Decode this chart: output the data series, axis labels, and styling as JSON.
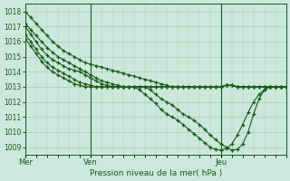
{
  "title": "Pression niveau de la mer( hPa )",
  "xlabel_ticks": [
    "Mer",
    "Ven",
    "Jeu"
  ],
  "xlabel_tick_positions": [
    0,
    12,
    36
  ],
  "ylim": [
    1008.5,
    1018.5
  ],
  "yticks": [
    1009,
    1010,
    1011,
    1012,
    1013,
    1014,
    1015,
    1016,
    1017,
    1018
  ],
  "bg_color": "#cce8dc",
  "line_color": "#1a5c1a",
  "grid_color": "#aaccbc",
  "total_points": 49,
  "series": [
    [
      1018.0,
      1017.6,
      1017.2,
      1016.8,
      1016.4,
      1016.0,
      1015.7,
      1015.4,
      1015.2,
      1015.0,
      1014.8,
      1014.6,
      1014.5,
      1014.4,
      1014.3,
      1014.2,
      1014.1,
      1014.0,
      1013.9,
      1013.8,
      1013.7,
      1013.6,
      1013.5,
      1013.4,
      1013.3,
      1013.2,
      1013.1,
      1013.0,
      1013.0,
      1013.0,
      1013.0,
      1013.0,
      1013.0,
      1013.0,
      1013.0,
      1013.0,
      1013.0,
      1013.1,
      1013.1,
      1013.0,
      1013.0,
      1013.0,
      1013.0,
      1013.0,
      1013.0,
      1013.0,
      1013.0,
      1013.0,
      1013.0
    ],
    [
      1017.2,
      1016.8,
      1016.4,
      1016.0,
      1015.6,
      1015.3,
      1015.0,
      1014.8,
      1014.6,
      1014.4,
      1014.2,
      1014.0,
      1013.8,
      1013.6,
      1013.4,
      1013.3,
      1013.2,
      1013.1,
      1013.0,
      1013.0,
      1013.0,
      1013.0,
      1013.0,
      1013.0,
      1013.0,
      1013.0,
      1013.0,
      1013.0,
      1013.0,
      1013.0,
      1013.0,
      1013.0,
      1013.0,
      1013.0,
      1013.0,
      1013.0,
      1013.0,
      1013.1,
      1013.1,
      1013.0,
      1013.0,
      1013.0,
      1013.0,
      1013.0,
      1013.0,
      1013.0,
      1013.0,
      1013.0,
      1013.0
    ],
    [
      1017.0,
      1016.5,
      1016.0,
      1015.5,
      1015.1,
      1014.8,
      1014.6,
      1014.4,
      1014.2,
      1014.1,
      1014.0,
      1013.8,
      1013.6,
      1013.4,
      1013.2,
      1013.1,
      1013.0,
      1013.0,
      1013.0,
      1013.0,
      1013.0,
      1013.0,
      1013.0,
      1013.0,
      1013.0,
      1013.0,
      1013.0,
      1013.0,
      1013.0,
      1013.0,
      1013.0,
      1013.0,
      1013.0,
      1013.0,
      1013.0,
      1013.0,
      1013.0,
      1013.1,
      1013.1,
      1013.0,
      1013.0,
      1013.0,
      1013.0,
      1013.0,
      1013.0,
      1013.0,
      1013.0,
      1013.0,
      1013.0
    ],
    [
      1016.5,
      1016.0,
      1015.5,
      1015.0,
      1014.6,
      1014.3,
      1014.1,
      1013.9,
      1013.7,
      1013.5,
      1013.3,
      1013.2,
      1013.1,
      1013.0,
      1013.0,
      1013.0,
      1013.0,
      1013.0,
      1013.0,
      1013.0,
      1013.0,
      1013.0,
      1013.0,
      1012.8,
      1012.5,
      1012.2,
      1012.0,
      1011.8,
      1011.5,
      1011.2,
      1011.0,
      1010.8,
      1010.5,
      1010.2,
      1009.8,
      1009.5,
      1009.2,
      1009.0,
      1008.8,
      1008.85,
      1009.2,
      1010.0,
      1011.2,
      1012.2,
      1012.8,
      1013.0,
      1013.0,
      1013.0,
      1013.0
    ],
    [
      1016.2,
      1015.7,
      1015.2,
      1014.7,
      1014.3,
      1014.0,
      1013.8,
      1013.6,
      1013.4,
      1013.2,
      1013.1,
      1013.0,
      1013.0,
      1013.0,
      1013.0,
      1013.0,
      1013.0,
      1013.0,
      1013.0,
      1013.0,
      1013.0,
      1012.8,
      1012.5,
      1012.2,
      1011.9,
      1011.5,
      1011.2,
      1011.0,
      1010.8,
      1010.5,
      1010.2,
      1009.9,
      1009.6,
      1009.3,
      1009.0,
      1008.85,
      1008.8,
      1008.9,
      1009.2,
      1009.8,
      1010.5,
      1011.3,
      1012.0,
      1012.5,
      1012.8,
      1013.0,
      1013.0,
      1013.0,
      1013.0
    ]
  ]
}
